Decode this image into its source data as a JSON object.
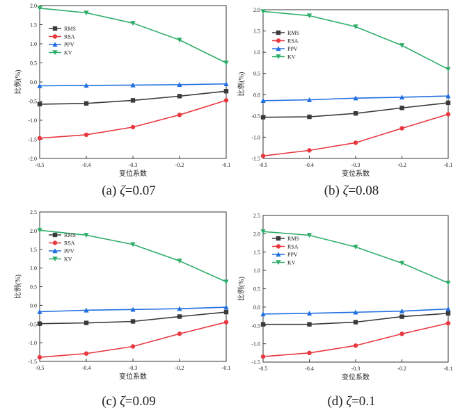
{
  "colors": {
    "RMS": "#3a3a3a",
    "RSA": "#e8373f",
    "PPV": "#1f6fe0",
    "KV": "#2fae6a"
  },
  "chart_data": [
    {
      "type": "line",
      "caption_prefix": "(a) ",
      "caption_symbol": "ζ",
      "caption_value": "=0.07",
      "xlabel": "变位系数",
      "ylabel": "比例(%)",
      "x": [
        -0.5,
        -0.4,
        -0.3,
        -0.2,
        -0.1
      ],
      "xlim": [
        -0.5,
        -0.1
      ],
      "ylim": [
        -2.0,
        2.0
      ],
      "xticks": [
        -0.5,
        -0.4,
        -0.3,
        -0.2,
        -0.1
      ],
      "yticks": [
        -2.0,
        -1.5,
        -1.0,
        -0.5,
        0.0,
        0.5,
        1.0,
        1.5,
        2.0
      ],
      "legend": "top-left",
      "grid": false,
      "series": [
        {
          "name": "RMS",
          "marker": "square",
          "values": [
            -0.58,
            -0.56,
            -0.48,
            -0.37,
            -0.24
          ]
        },
        {
          "name": "RSA",
          "marker": "circle",
          "values": [
            -1.47,
            -1.38,
            -1.18,
            -0.86,
            -0.48
          ]
        },
        {
          "name": "PPV",
          "marker": "triangle-up",
          "values": [
            -0.1,
            -0.09,
            -0.08,
            -0.07,
            -0.05
          ]
        },
        {
          "name": "KV",
          "marker": "triangle-down",
          "values": [
            1.93,
            1.81,
            1.54,
            1.1,
            0.5
          ]
        }
      ]
    },
    {
      "type": "line",
      "caption_prefix": "(b) ",
      "caption_symbol": "ζ",
      "caption_value": "=0.08",
      "xlabel": "变位系数",
      "ylabel": "比例(%)",
      "x": [
        -0.5,
        -0.4,
        -0.3,
        -0.2,
        -0.1
      ],
      "xlim": [
        -0.5,
        -0.1
      ],
      "ylim": [
        -1.5,
        2.0
      ],
      "xticks": [
        -0.5,
        -0.4,
        -0.3,
        -0.2,
        -0.1
      ],
      "yticks": [
        -1.5,
        -1.0,
        -0.5,
        0.0,
        0.5,
        1.0,
        1.5,
        2.0
      ],
      "legend": "top-left",
      "grid": false,
      "series": [
        {
          "name": "RMS",
          "marker": "square",
          "values": [
            -0.53,
            -0.52,
            -0.44,
            -0.31,
            -0.19
          ]
        },
        {
          "name": "RSA",
          "marker": "circle",
          "values": [
            -1.44,
            -1.31,
            -1.13,
            -0.79,
            -0.46
          ]
        },
        {
          "name": "PPV",
          "marker": "triangle-up",
          "values": [
            -0.14,
            -0.12,
            -0.08,
            -0.06,
            -0.03
          ]
        },
        {
          "name": "KV",
          "marker": "triangle-down",
          "values": [
            1.96,
            1.86,
            1.6,
            1.16,
            0.6
          ]
        }
      ]
    },
    {
      "type": "line",
      "caption_prefix": "(c) ",
      "caption_symbol": "ζ",
      "caption_value": "=0.09",
      "xlabel": "变位系数",
      "ylabel": "比例(%)",
      "x": [
        -0.5,
        -0.4,
        -0.3,
        -0.2,
        -0.1
      ],
      "xlim": [
        -0.5,
        -0.1
      ],
      "ylim": [
        -1.5,
        2.5
      ],
      "xticks": [
        -0.5,
        -0.4,
        -0.3,
        -0.2,
        -0.1
      ],
      "yticks": [
        -1.5,
        -1.0,
        -0.5,
        0.0,
        0.5,
        1.0,
        1.5,
        2.0,
        2.5
      ],
      "legend": "top-left",
      "grid": false,
      "series": [
        {
          "name": "RMS",
          "marker": "square",
          "values": [
            -0.49,
            -0.47,
            -0.43,
            -0.3,
            -0.18
          ]
        },
        {
          "name": "RSA",
          "marker": "circle",
          "values": [
            -1.39,
            -1.29,
            -1.1,
            -0.76,
            -0.45
          ]
        },
        {
          "name": "PPV",
          "marker": "triangle-up",
          "values": [
            -0.17,
            -0.13,
            -0.11,
            -0.09,
            -0.05
          ]
        },
        {
          "name": "KV",
          "marker": "triangle-down",
          "values": [
            2.01,
            1.88,
            1.63,
            1.19,
            0.63
          ]
        }
      ]
    },
    {
      "type": "line",
      "caption_prefix": "(d) ",
      "caption_symbol": "ζ",
      "caption_value": "=0.1",
      "xlabel": "变位系数",
      "ylabel": "比例(%)",
      "x": [
        -0.5,
        -0.4,
        -0.3,
        -0.2,
        -0.1
      ],
      "xlim": [
        -0.5,
        -0.1
      ],
      "ylim": [
        -1.5,
        2.5
      ],
      "xticks": [
        -0.5,
        -0.4,
        -0.3,
        -0.2,
        -0.1
      ],
      "yticks": [
        -1.5,
        -1.0,
        -0.5,
        0.0,
        0.5,
        1.0,
        1.5,
        2.0,
        2.5
      ],
      "legend": "top-left",
      "grid": false,
      "series": [
        {
          "name": "RMS",
          "marker": "square",
          "values": [
            -0.47,
            -0.47,
            -0.41,
            -0.26,
            -0.17
          ]
        },
        {
          "name": "RSA",
          "marker": "circle",
          "values": [
            -1.35,
            -1.25,
            -1.05,
            -0.73,
            -0.44
          ]
        },
        {
          "name": "PPV",
          "marker": "triangle-up",
          "values": [
            -0.19,
            -0.17,
            -0.14,
            -0.11,
            -0.05
          ]
        },
        {
          "name": "KV",
          "marker": "triangle-down",
          "values": [
            2.06,
            1.96,
            1.64,
            1.2,
            0.66
          ]
        }
      ]
    }
  ]
}
